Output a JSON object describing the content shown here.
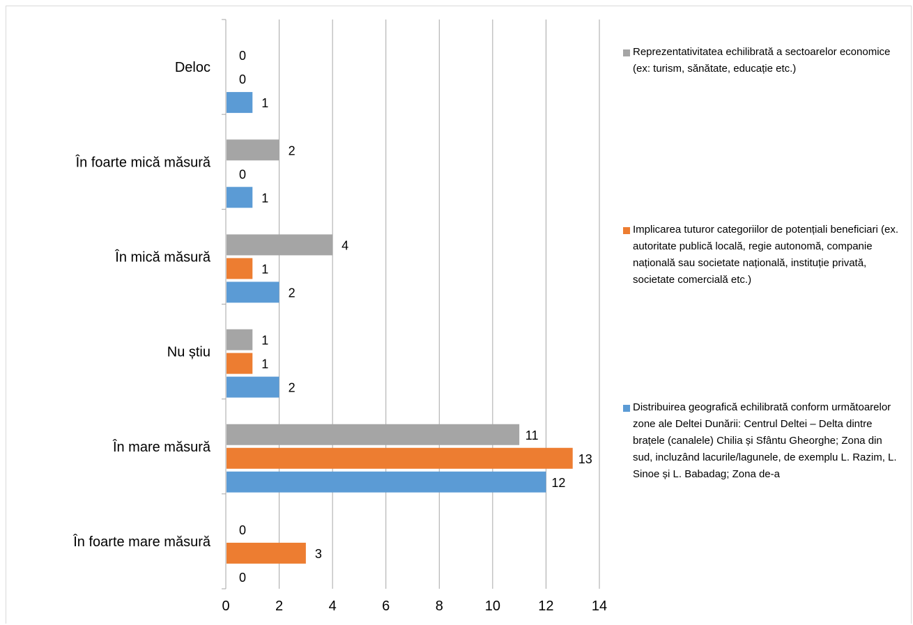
{
  "chart_data": {
    "type": "bar",
    "orientation": "horizontal",
    "categories": [
      "Deloc",
      "În foarte mică măsură",
      "În mică măsură",
      "Nu știu",
      "În mare măsură",
      "În foarte mare măsură"
    ],
    "series": [
      {
        "name": "Distribuirea geografică echilibrată conform următoarelor zone ale Deltei Dunării: Centrul Deltei – Delta dintre brațele (canalele) Chilia și Sfântu Gheorghe; Zona din sud, incluzând lacurile/lagunele, de exemplu L. Razim, L. Sinoe și L. Babadag; Zona de-a",
        "color": "#5B9BD5",
        "values": [
          1,
          1,
          2,
          2,
          12,
          0
        ]
      },
      {
        "name": "Implicarea tuturor categoriilor de potențiali beneficiari (ex. autoritate publică locală, regie autonomă, companie națională sau societate națională, instituție privată, societate comercială etc.)",
        "color": "#ED7D31",
        "values": [
          0,
          0,
          1,
          1,
          13,
          3
        ]
      },
      {
        "name": "Reprezentativitatea echilibrată a sectoarelor economice (ex: turism, sănătate, educație etc.)",
        "color": "#A5A5A5",
        "values": [
          0,
          2,
          4,
          1,
          11,
          0
        ]
      }
    ],
    "xlim": [
      0,
      14
    ],
    "x_ticks": [
      "0",
      "2",
      "4",
      "6",
      "8",
      "10",
      "12",
      "14"
    ],
    "grid": true,
    "legend_position": "right"
  }
}
